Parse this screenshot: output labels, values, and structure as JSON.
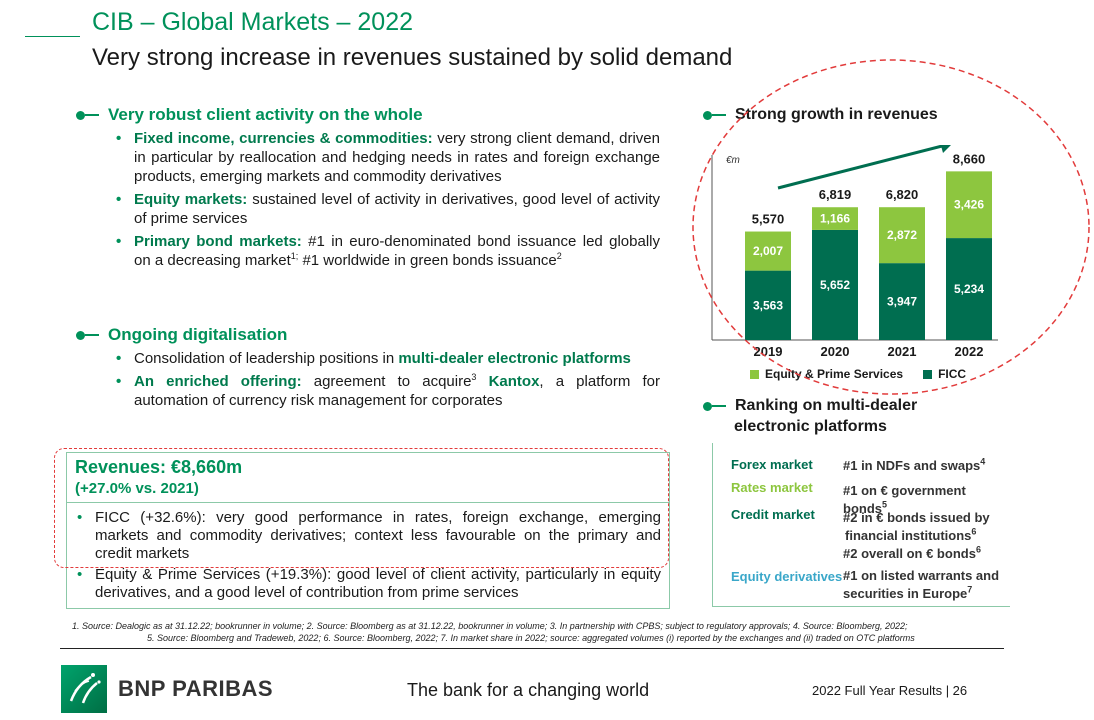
{
  "header": {
    "title": "CIB – Global Markets – 2022",
    "subtitle": "Very strong increase in revenues sustained by solid demand"
  },
  "left": {
    "section1": {
      "heading": "Very robust client activity on the whole",
      "items": [
        {
          "bold": "Fixed income, currencies & commodities:",
          "text": " very strong client demand, driven in particular by reallocation and hedging needs in rates and foreign exchange products, emerging markets and commodity derivatives"
        },
        {
          "bold": "Equity markets:",
          "text": " sustained level of activity in derivatives, good level of activity of prime services"
        },
        {
          "bold": "Primary bond markets:",
          "text_a": " #1 in euro-denominated bond issuance led globally on a decreasing market",
          "sup_a": "1;",
          "text_b": " #1 worldwide in green bonds issuance",
          "sup_b": "2"
        }
      ]
    },
    "section2": {
      "heading": "Ongoing digitalisation",
      "items": [
        {
          "text": "Consolidation of leadership positions in ",
          "bold": "multi-dealer electronic platforms"
        },
        {
          "bold": "An enriched offering:",
          "text_a": " agreement to acquire",
          "sup": "3",
          "bold_b": " Kantox",
          "text_b": ", a platform for automation of currency risk management for corporates"
        }
      ]
    }
  },
  "revenues": {
    "title": "Revenues: €8,660m",
    "growth": "(+27.0% vs. 2021)",
    "items": [
      "FICC (+32.6%): very good performance in rates, foreign exchange, emerging markets and commodity derivatives; context less favourable on the primary and credit markets",
      "Equity & Prime Services (+19.3%): good level of client activity, particularly in equity derivatives, and a good level of contribution from prime services"
    ]
  },
  "chart": {
    "heading": "Strong growth in revenues",
    "unit": "€m"
  },
  "chart_data": {
    "type": "bar",
    "stacked": true,
    "categories": [
      "2019",
      "2020",
      "2021",
      "2022"
    ],
    "series": [
      {
        "name": "FICC",
        "values": [
          3563,
          5652,
          3947,
          5234
        ],
        "color": "#006e50"
      },
      {
        "name": "Equity & Prime Services",
        "values": [
          2007,
          1166,
          2872,
          3426
        ],
        "color": "#8dc63f"
      }
    ],
    "totals": [
      "5,570",
      "6,819",
      "6,820",
      "8,660"
    ],
    "value_labels": {
      "FICC": [
        "3,563",
        "5,652",
        "3,947",
        "5,234"
      ],
      "Equity & Prime Services": [
        "2,007",
        "1,166",
        "2,872",
        "3,426"
      ]
    },
    "ylim": [
      0,
      9500
    ],
    "legend_placement": "bottom",
    "grid": false
  },
  "ranking": {
    "heading_line1": "Ranking on multi-dealer",
    "heading_line2": "electronic platforms",
    "rows": [
      {
        "market": "Forex market",
        "color": "#006e50",
        "value_html": "#1 in NDFs and swaps",
        "sup": "4"
      },
      {
        "market": "Rates market",
        "color": "#8dc63f",
        "value_html": "#1 on € government bonds",
        "sup": "5"
      },
      {
        "market": "Credit market",
        "color": "#006e50",
        "value_line1": "#2 in € bonds issued by",
        "value_line2": "financial institutions",
        "sup2": "6",
        "value_line3": "#2 overall on € bonds",
        "sup3": "6"
      },
      {
        "market": "Equity derivatives",
        "color": "#3aa7c9",
        "value_line1": "#1 on listed warrants and",
        "value_line2": "securities in Europe",
        "sup2": "7"
      }
    ]
  },
  "footnotes": {
    "line1": "1. Source: Dealogic as at 31.12.22; bookrunner in volume; 2. Source: Bloomberg as at 31.12.22, bookrunner in volume; 3. In partnership with CPBS; subject to regulatory approvals; 4. Source: Bloomberg, 2022;",
    "line2": "5. Source: Bloomberg and Tradeweb, 2022; 6. Source: Bloomberg, 2022; 7. In market share in 2022; source: aggregated volumes (i) reported by the exchanges and (ii) traded on OTC platforms"
  },
  "footer": {
    "brand": "BNP PARIBAS",
    "tagline": "The bank for a changing world",
    "page_ref": "2022 Full Year Results | 26"
  },
  "colors": {
    "brand_green": "#00915a",
    "ficc": "#006e50",
    "equity": "#8dc63f",
    "annotation_red": "#e23b3b"
  }
}
